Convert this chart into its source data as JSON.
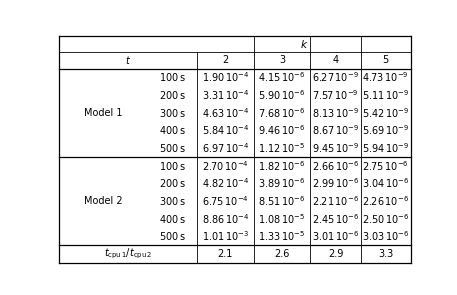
{
  "model1_label": "Model 1",
  "model2_label": "Model 2",
  "times": [
    "100\\,\\mathrm{s}",
    "200\\,\\mathrm{s}",
    "300\\,\\mathrm{s}",
    "400\\,\\mathrm{s}",
    "500\\,\\mathrm{s}"
  ],
  "model1_data": [
    [
      "1.90\\,10^{-4}",
      "4.15\\,10^{-6}",
      "6.27\\,10^{-9}",
      "4.73\\,10^{-9}"
    ],
    [
      "3.31\\,10^{-4}",
      "5.90\\,10^{-6}",
      "7.57\\,10^{-9}",
      "5.11\\,10^{-9}"
    ],
    [
      "4.63\\,10^{-4}",
      "7.68\\,10^{-6}",
      "8.13\\,10^{-9}",
      "5.42\\,10^{-9}"
    ],
    [
      "5.84\\,10^{-4}",
      "9.46\\,10^{-6}",
      "8.67\\,10^{-9}",
      "5.69\\,10^{-9}"
    ],
    [
      "6.97\\,10^{-4}",
      "1.12\\,10^{-5}",
      "9.45\\,10^{-9}",
      "5.94\\,10^{-9}"
    ]
  ],
  "model2_data": [
    [
      "2.70\\,10^{-4}",
      "1.82\\,10^{-6}",
      "2.66\\,10^{-6}",
      "2.75\\,10^{-6}"
    ],
    [
      "4.82\\,10^{-4}",
      "3.89\\,10^{-6}",
      "2.99\\,10^{-6}",
      "3.04\\,10^{-6}"
    ],
    [
      "6.75\\,10^{-4}",
      "8.51\\,10^{-6}",
      "2.21\\,10^{-6}",
      "2.26\\,10^{-6}"
    ],
    [
      "8.86\\,10^{-4}",
      "1.08\\,10^{-5}",
      "2.45\\,10^{-6}",
      "2.50\\,10^{-6}"
    ],
    [
      "1.01\\,10^{-3}",
      "1.33\\,10^{-5}",
      "3.01\\,10^{-6}",
      "3.03\\,10^{-6}"
    ]
  ],
  "cpu_ratios": [
    "2.1",
    "2.6",
    "2.9",
    "3.3"
  ],
  "bg_color": "#ffffff",
  "text_color": "#000000"
}
